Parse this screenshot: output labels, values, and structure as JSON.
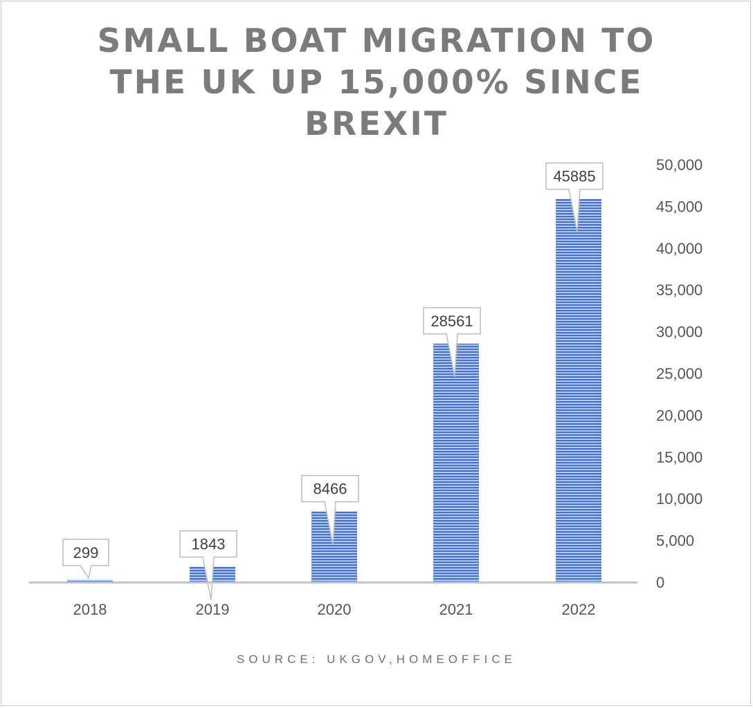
{
  "chart_data": {
    "type": "bar",
    "title_lines": [
      "SMALL BOAT MIGRATION TO",
      "THE UK UP 15,000% SINCE",
      "BREXIT"
    ],
    "categories": [
      "2018",
      "2019",
      "2020",
      "2021",
      "2022"
    ],
    "values": [
      299,
      1843,
      8466,
      28561,
      45885
    ],
    "data_labels": [
      "299",
      "1843",
      "8466",
      "28561",
      "45885"
    ],
    "y_ticks": [
      0,
      5000,
      10000,
      15000,
      20000,
      25000,
      30000,
      35000,
      40000,
      45000,
      50000
    ],
    "y_tick_labels": [
      "0",
      "5,000",
      "10,000",
      "15,000",
      "20,000",
      "25,000",
      "30,000",
      "35,000",
      "40,000",
      "45,000",
      "50,000"
    ],
    "ylim": [
      0,
      50000
    ],
    "y_axis_side": "right",
    "grid": false,
    "legend": "none",
    "bar_color": "#4a72c8",
    "bar_stripe_color": "#dfe7f7",
    "source": "SOURCE: UKGOV,HOMEOFFICE"
  }
}
